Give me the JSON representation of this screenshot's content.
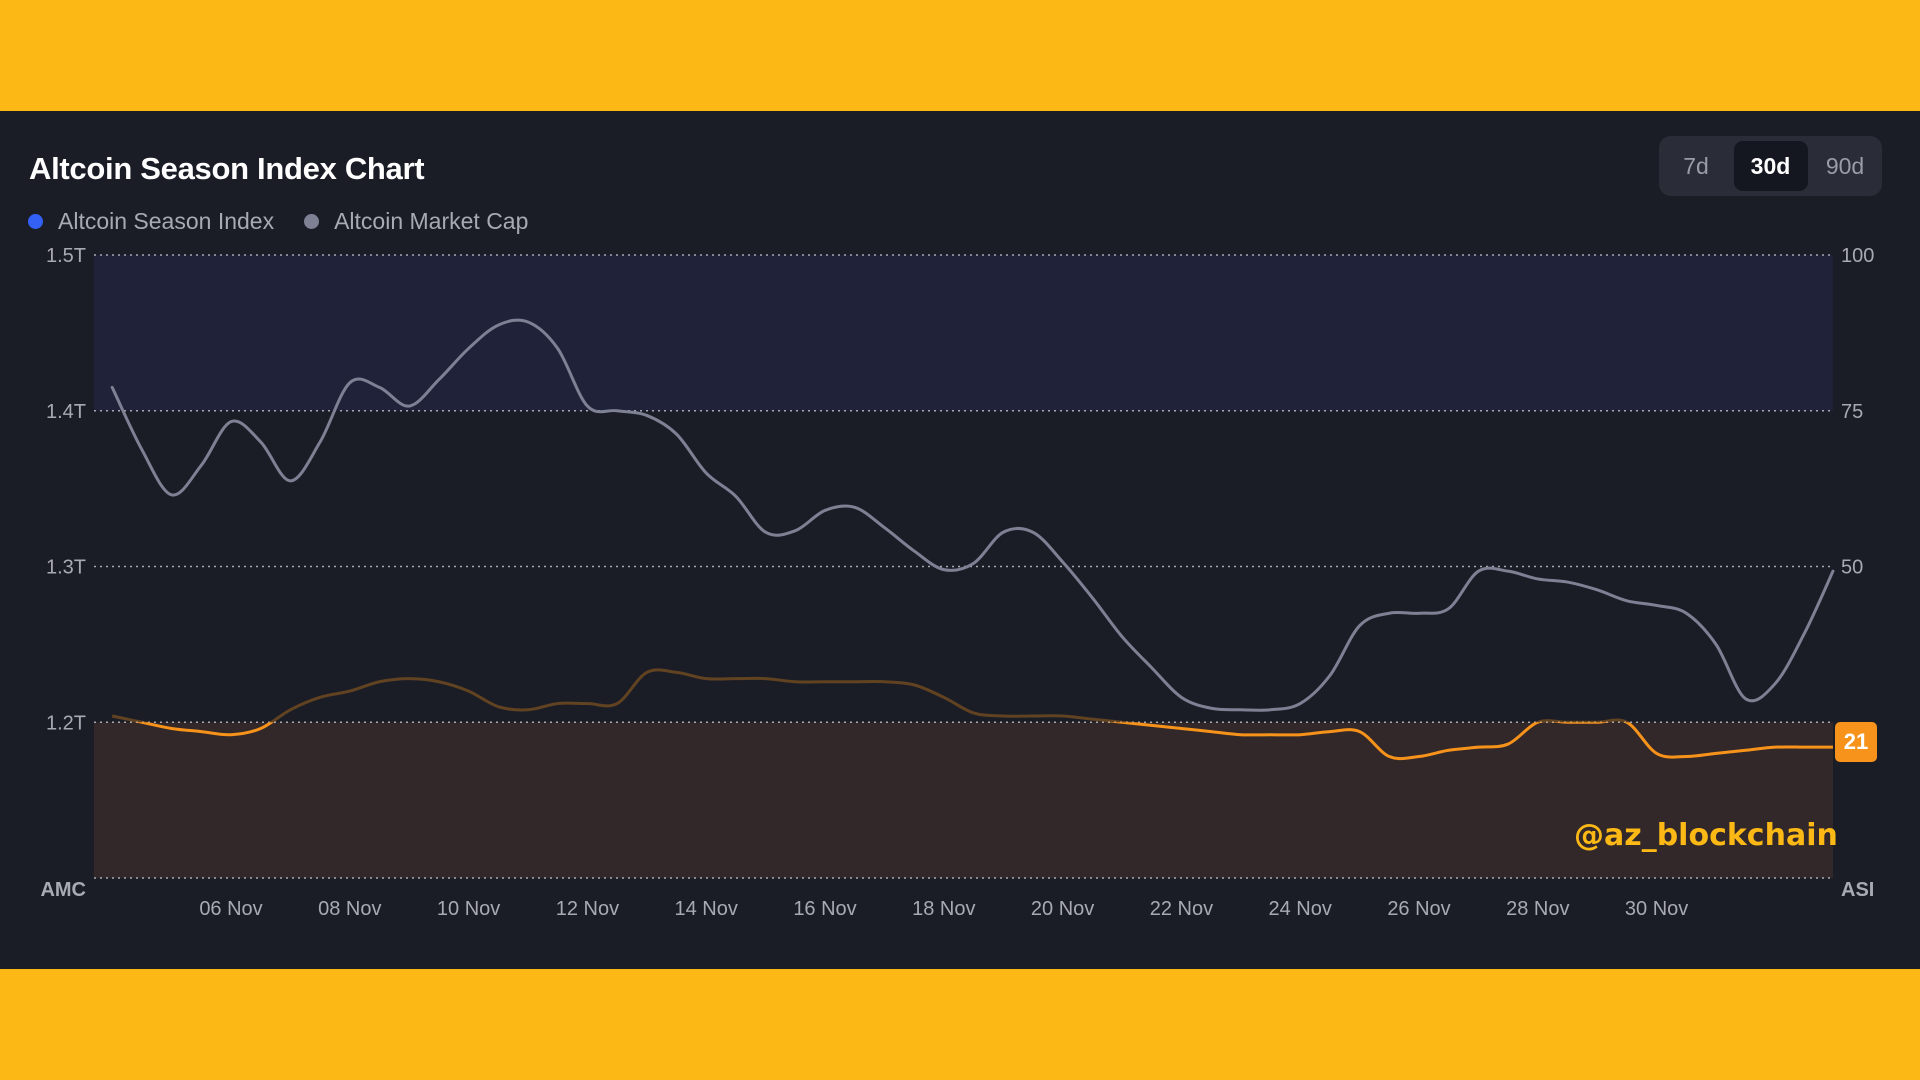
{
  "colors": {
    "background_frame": "#FCB916",
    "panel": "#1B1D26",
    "market_cap_line": "#7E8194",
    "season_index_line": "#F7931A",
    "season_index_dot": "#3361F5",
    "market_cap_dot": "#7E8194",
    "altcoin_zone": "#20223A",
    "bitcoin_zone": "#322829"
  },
  "header": {
    "title": "Altcoin Season Index Chart"
  },
  "legend": {
    "items": [
      {
        "label": "Altcoin Season Index",
        "color": "#3361F5"
      },
      {
        "label": "Altcoin Market Cap",
        "color": "#7E8194"
      }
    ]
  },
  "range_selector": {
    "options": [
      "7d",
      "30d",
      "90d"
    ],
    "selected": "30d"
  },
  "badge": {
    "value": "21"
  },
  "watermark": {
    "text": "@az_blockchain"
  },
  "chart_data": {
    "type": "line",
    "title": "Altcoin Season Index Chart",
    "xlabel": "",
    "x_tick_labels": [
      "06 Nov",
      "08 Nov",
      "10 Nov",
      "12 Nov",
      "14 Nov",
      "16 Nov",
      "18 Nov",
      "20 Nov",
      "22 Nov",
      "24 Nov",
      "26 Nov",
      "28 Nov",
      "30 Nov"
    ],
    "left_axis": {
      "label": "AMC",
      "ticks": [
        "1.5T",
        "1.4T",
        "1.3T",
        "1.2T"
      ],
      "tick_values": [
        1.5,
        1.4,
        1.3,
        1.2
      ],
      "range": [
        1.1,
        1.5
      ],
      "unit": "T"
    },
    "right_axis": {
      "label": "ASI",
      "ticks": [
        "100",
        "75",
        "50"
      ],
      "tick_values": [
        100,
        75,
        50
      ],
      "range": [
        0,
        100
      ]
    },
    "zones": [
      {
        "name": "altcoin_season",
        "from": 75,
        "to": 100
      },
      {
        "name": "bitcoin_season",
        "from": 0,
        "to": 25
      }
    ],
    "grid": true,
    "series": [
      {
        "name": "Altcoin Market Cap",
        "axis": "left",
        "x": [
          4.0,
          4.5,
          5.0,
          5.5,
          6.0,
          6.5,
          7.0,
          7.5,
          8.0,
          8.5,
          9.0,
          9.5,
          10.0,
          10.5,
          11.0,
          11.5,
          12.0,
          12.5,
          13.0,
          13.5,
          14.0,
          14.5,
          15.0,
          15.5,
          16.0,
          16.5,
          17.0,
          17.5,
          18.0,
          18.5,
          19.0,
          19.5,
          20.0,
          20.5,
          21.0,
          21.5,
          22.0,
          22.5,
          23.0,
          23.5,
          24.0,
          24.5,
          25.0,
          25.5,
          26.0,
          26.5,
          27.0,
          27.5,
          28.0,
          28.5,
          29.0,
          29.5,
          30.0,
          30.5,
          31.0,
          31.5,
          32.0,
          32.5,
          33.0
        ],
        "values": [
          1.415,
          1.375,
          1.346,
          1.365,
          1.393,
          1.38,
          1.355,
          1.38,
          1.418,
          1.415,
          1.403,
          1.42,
          1.44,
          1.455,
          1.457,
          1.44,
          1.403,
          1.4,
          1.397,
          1.385,
          1.36,
          1.345,
          1.322,
          1.323,
          1.336,
          1.338,
          1.325,
          1.31,
          1.298,
          1.302,
          1.322,
          1.322,
          1.303,
          1.28,
          1.255,
          1.235,
          1.216,
          1.209,
          1.208,
          1.208,
          1.212,
          1.23,
          1.262,
          1.27,
          1.27,
          1.273,
          1.297,
          1.297,
          1.292,
          1.29,
          1.285,
          1.278,
          1.275,
          1.27,
          1.25,
          1.215,
          1.225,
          1.258,
          1.297
        ]
      },
      {
        "name": "Altcoin Season Index",
        "axis": "right",
        "x": [
          4.0,
          4.5,
          5.0,
          5.5,
          6.0,
          6.5,
          7.0,
          7.5,
          8.0,
          8.5,
          9.0,
          9.5,
          10.0,
          10.5,
          11.0,
          11.5,
          12.0,
          12.5,
          13.0,
          13.5,
          14.0,
          14.5,
          15.0,
          15.5,
          16.0,
          16.5,
          17.0,
          17.5,
          18.0,
          18.5,
          19.0,
          19.5,
          20.0,
          20.5,
          21.0,
          21.5,
          22.0,
          22.5,
          23.0,
          23.5,
          24.0,
          24.5,
          25.0,
          25.5,
          26.0,
          26.5,
          27.0,
          27.5,
          28.0,
          28.5,
          29.0,
          29.5,
          30.0,
          30.5,
          31.0,
          31.5,
          32.0,
          32.5,
          33.0
        ],
        "values": [
          26,
          25,
          24,
          23.5,
          23,
          24,
          27,
          29,
          30,
          31.5,
          32,
          31.5,
          30,
          27.5,
          27,
          28,
          28,
          28,
          33,
          33,
          32,
          32,
          32,
          31.5,
          31.5,
          31.5,
          31.5,
          31,
          29,
          26.5,
          26,
          26,
          26,
          25.5,
          25,
          24.5,
          24,
          23.5,
          23,
          23,
          23,
          23.5,
          23.5,
          19.5,
          19.5,
          20.5,
          21,
          21.5,
          25,
          25,
          25,
          25,
          20,
          19.5,
          20,
          20.5,
          21,
          21,
          21
        ]
      }
    ],
    "latest_value": 21
  }
}
